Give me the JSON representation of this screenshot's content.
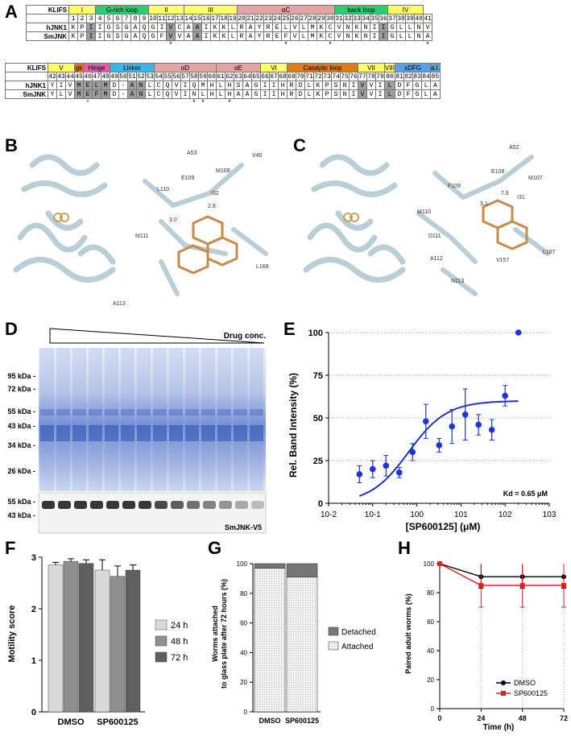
{
  "panels": {
    "a": "A",
    "b": "B",
    "c": "C",
    "d": "D",
    "e": "E",
    "f": "F",
    "g": "G",
    "h": "H"
  },
  "klifs_top": {
    "label": "KLIFS",
    "regions": [
      {
        "name": "I",
        "span": 3,
        "color": "#ffff66"
      },
      {
        "name": "G-rich loop",
        "span": 6,
        "color": "#2ecc71"
      },
      {
        "name": "II",
        "span": 4,
        "color": "#ffff66"
      },
      {
        "name": "III",
        "span": 6,
        "color": "#ffff66"
      },
      {
        "name": "αC",
        "span": 11,
        "color": "#e6a3a3"
      },
      {
        "name": "back loop",
        "span": 6,
        "color": "#2ecc71"
      },
      {
        "name": "IV",
        "span": 4,
        "color": "#ffff66"
      }
    ],
    "numbers": [
      "1",
      "2",
      "3",
      "4",
      "5",
      "6",
      "7",
      "8",
      "9",
      "10",
      "11",
      "12",
      "13",
      "14",
      "15",
      "16",
      "17",
      "18",
      "19",
      "20",
      "21",
      "22",
      "23",
      "24",
      "25",
      "26",
      "27",
      "28",
      "29",
      "30",
      "31",
      "32",
      "33",
      "34",
      "35",
      "36",
      "37",
      "38",
      "39",
      "40",
      "41"
    ],
    "rows": [
      {
        "name": "hJNK1",
        "seq": [
          "K",
          "P",
          "I",
          "I",
          "G",
          "S",
          "G",
          "A",
          "Q",
          "G",
          "I",
          "V",
          "C",
          "A",
          "A",
          "I",
          "K",
          "K",
          "L",
          "R",
          "A",
          "Y",
          "R",
          "E",
          "L",
          "V",
          "L",
          "M",
          "K",
          "C",
          "V",
          "N",
          "K",
          "N",
          "I",
          "I",
          "G",
          "L",
          "L",
          "N",
          "V"
        ]
      },
      {
        "name": "SmJNK",
        "seq": [
          "K",
          "P",
          "I",
          "I",
          "G",
          "S",
          "G",
          "A",
          "Q",
          "G",
          "F",
          "V",
          "V",
          "A",
          "A",
          "I",
          "K",
          "K",
          "L",
          "R",
          "A",
          "Y",
          "R",
          "E",
          "F",
          "V",
          "L",
          "M",
          "K",
          "C",
          "V",
          "N",
          "K",
          "N",
          "I",
          "I",
          "G",
          "L",
          "L",
          "N",
          "A"
        ]
      }
    ],
    "stars": [
      "",
      "",
      "",
      "",
      "",
      "",
      "",
      "",
      "",
      "",
      "",
      "*",
      "",
      "",
      "",
      "",
      "",
      "",
      "",
      "",
      "",
      "",
      "",
      "",
      "*",
      "",
      "",
      "",
      "",
      "*",
      "",
      "",
      "",
      "",
      "",
      "",
      "",
      "",
      "",
      "",
      "*"
    ]
  },
  "klifs_bottom": {
    "label": "KLIFS",
    "regions": [
      {
        "name": "V",
        "span": 3,
        "color": "#ffff66"
      },
      {
        "name": "gk",
        "span": 1,
        "color": "#e07b1a"
      },
      {
        "name": "Hinge",
        "span": 3,
        "color": "#e75ba8"
      },
      {
        "name": "Linker",
        "span": 5,
        "color": "#3bb5e6"
      },
      {
        "name": "αD",
        "span": 7,
        "color": "#e6a3a3"
      },
      {
        "name": "αE",
        "span": 5,
        "color": "#e6a3a3"
      },
      {
        "name": "VI",
        "span": 3,
        "color": "#ffff66"
      },
      {
        "name": "Catalytic loop",
        "span": 8,
        "color": "#e07b1a"
      },
      {
        "name": "VII",
        "span": 3,
        "color": "#ffff66"
      },
      {
        "name": "VIII",
        "span": 1,
        "color": "#ffff66"
      },
      {
        "name": "xDFG",
        "span": 4,
        "color": "#5aa0e6"
      },
      {
        "name": "a.l.",
        "span": 2,
        "color": "#5aa0e6"
      }
    ],
    "numbers": [
      "42",
      "43",
      "44",
      "45",
      "46",
      "47",
      "48",
      "49",
      "50",
      "51",
      "52",
      "53",
      "54",
      "55",
      "56",
      "57",
      "58",
      "59",
      "60",
      "61",
      "62",
      "63",
      "64",
      "65",
      "66",
      "67",
      "68",
      "69",
      "70",
      "71",
      "72",
      "73",
      "74",
      "75",
      "76",
      "77",
      "78",
      "79",
      "80",
      "81",
      "82",
      "83",
      "84",
      "85"
    ],
    "rows": [
      {
        "name": "hJNK1",
        "seq": [
          "Y",
          "I",
          "V",
          "M",
          "E",
          "L",
          "M",
          "D",
          "-",
          "A",
          "N",
          "L",
          "C",
          "Q",
          "V",
          "I",
          "Q",
          "M",
          "H",
          "L",
          "H",
          "S",
          "A",
          "G",
          "I",
          "I",
          "H",
          "R",
          "D",
          "L",
          "K",
          "P",
          "S",
          "N",
          "I",
          "V",
          "V",
          "I",
          "L",
          "D",
          "F",
          "G",
          "L",
          "A"
        ]
      },
      {
        "name": "SmJNK",
        "seq": [
          "Y",
          "L",
          "V",
          "M",
          "E",
          "F",
          "M",
          "D",
          "-",
          "A",
          "N",
          "L",
          "C",
          "Q",
          "V",
          "I",
          "N",
          "L",
          "H",
          "L",
          "H",
          "A",
          "A",
          "G",
          "I",
          "I",
          "H",
          "R",
          "D",
          "L",
          "K",
          "P",
          "S",
          "N",
          "I",
          "V",
          "V",
          "I",
          "L",
          "D",
          "F",
          "G",
          "L",
          "A"
        ]
      }
    ],
    "stars": [
      "",
      "",
      "",
      "",
      "*",
      "",
      "",
      "",
      "",
      "",
      "",
      "",
      "",
      "",
      "",
      "",
      "*",
      "*",
      "",
      "",
      "*",
      "",
      "",
      "",
      "",
      "",
      "",
      "",
      "",
      "",
      "",
      "",
      "",
      "",
      "",
      "",
      "",
      "",
      "",
      "",
      "",
      "",
      "",
      ""
    ]
  },
  "struct_b": {
    "labels": [
      "A53",
      "V40",
      "M108",
      "E109",
      "I32",
      "L110",
      "2.8",
      "3.0",
      "M111",
      "L168",
      "A113"
    ]
  },
  "struct_c": {
    "labels": [
      "A52",
      "E108",
      "M107",
      "F109",
      "7.8",
      "I31",
      "3.1",
      "M110",
      "D111",
      "A112",
      "V157",
      "L167",
      "N113"
    ]
  },
  "gel": {
    "drug_label": "Drug conc.",
    "markers": [
      "95 kDa -",
      "72 kDa -",
      "55 kDa -",
      "43 kDa -",
      "34 kDa -",
      "26 kDa -"
    ],
    "wb_markers": [
      "55 kDa -",
      "43 kDa -"
    ],
    "wb_label": "SmJNK-V5"
  },
  "chart_data": [
    {
      "type": "scatter",
      "panel": "E",
      "xlabel": "[SP600125] (μM)",
      "ylabel": "Rel. Band Intensity (%)",
      "xscale": "log",
      "xlim": [
        0.01,
        1000
      ],
      "ylim": [
        0,
        100
      ],
      "xticks": [
        "10-2",
        "10-1",
        "100",
        "101",
        "102",
        "103"
      ],
      "yticks": [
        "0",
        "25",
        "50",
        "75",
        "100"
      ],
      "grid": "horizontal dotted",
      "annotation": "Kd = 0.65 μM",
      "points": [
        {
          "x": 0.05,
          "y": 17,
          "err": 5
        },
        {
          "x": 0.1,
          "y": 20,
          "err": 5
        },
        {
          "x": 0.2,
          "y": 22,
          "err": 6
        },
        {
          "x": 0.4,
          "y": 18,
          "err": 3
        },
        {
          "x": 0.8,
          "y": 30,
          "err": 5
        },
        {
          "x": 1.6,
          "y": 48,
          "err": 10
        },
        {
          "x": 3.2,
          "y": 34,
          "err": 4
        },
        {
          "x": 6.25,
          "y": 45,
          "err": 10
        },
        {
          "x": 12.5,
          "y": 52,
          "err": 15
        },
        {
          "x": 25,
          "y": 46,
          "err": 6
        },
        {
          "x": 50,
          "y": 43,
          "err": 6
        },
        {
          "x": 100,
          "y": 63,
          "err": 6
        },
        {
          "x": 200,
          "y": 100,
          "err": 0
        }
      ],
      "fit": {
        "kd": 0.65,
        "bottom": 0,
        "top": 60
      }
    },
    {
      "type": "bar",
      "panel": "F",
      "ylabel": "Motility score",
      "ylim": [
        0,
        3
      ],
      "yticks": [
        "0",
        "1",
        "2",
        "3"
      ],
      "categories": [
        "DMSO",
        "SP600125"
      ],
      "series": [
        {
          "name": "24 h",
          "values": [
            2.85,
            2.75
          ],
          "err": [
            0.05,
            0.2
          ],
          "color": "#d9d9d9"
        },
        {
          "name": "48 h",
          "values": [
            2.92,
            2.63
          ],
          "err": [
            0.05,
            0.2
          ],
          "color": "#8f8f8f"
        },
        {
          "name": "72 h",
          "values": [
            2.88,
            2.75
          ],
          "err": [
            0.07,
            0.1
          ],
          "color": "#5f5f5f"
        }
      ]
    },
    {
      "type": "bar",
      "panel": "G",
      "stacked": true,
      "ylabel": "Worms attached to glass plate after 72 hours (%)",
      "ylim": [
        0,
        100
      ],
      "yticks": [
        "0",
        "20",
        "40",
        "60",
        "80",
        "100"
      ],
      "categories": [
        "DMSO",
        "SP600125"
      ],
      "series": [
        {
          "name": "Attached",
          "values": [
            97,
            91
          ],
          "color": "#f2f2f2"
        },
        {
          "name": "Detached",
          "values": [
            3,
            9
          ],
          "color": "#777777"
        }
      ],
      "legend": "right"
    },
    {
      "type": "line",
      "panel": "H",
      "xlabel": "Time (h)",
      "ylabel": "Paired adult worms (%)",
      "ylim": [
        0,
        100
      ],
      "xlim": [
        0,
        72
      ],
      "xticks": [
        "0",
        "24",
        "48",
        "72"
      ],
      "yticks": [
        "0",
        "20",
        "40",
        "60",
        "80",
        "100"
      ],
      "x": [
        0,
        24,
        48,
        72
      ],
      "series": [
        {
          "name": "DMSO",
          "values": [
            100,
            91,
            91,
            91
          ],
          "err": [
            0,
            8,
            8,
            8
          ],
          "color": "#000000"
        },
        {
          "name": "SP600125",
          "values": [
            100,
            85,
            85,
            85
          ],
          "err": [
            0,
            15,
            15,
            15
          ],
          "color": "#e02020"
        }
      ],
      "legend": "bottom-right"
    }
  ]
}
